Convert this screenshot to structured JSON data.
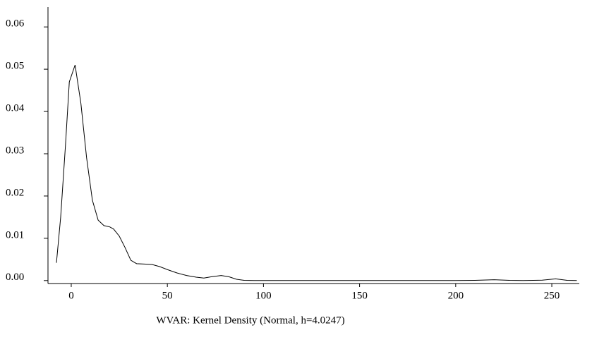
{
  "chart_data": {
    "type": "line",
    "caption": "WVAR: Kernel Density (Normal, h=4.0247)",
    "x": [
      -7.7,
      -5.5,
      -3,
      -1,
      2,
      5,
      8,
      11,
      14,
      17,
      20,
      22,
      25,
      28,
      31,
      34,
      38,
      42,
      46,
      50,
      55,
      60,
      65,
      69,
      73,
      78,
      82,
      86,
      90,
      95,
      100,
      150,
      200,
      210,
      220,
      228,
      235,
      245,
      252,
      258,
      263
    ],
    "series": [
      {
        "color": "#000000",
        "values": [
          0.0042,
          0.015,
          0.032,
          0.047,
          0.051,
          0.042,
          0.029,
          0.019,
          0.0143,
          0.013,
          0.0127,
          0.0122,
          0.0105,
          0.0078,
          0.0048,
          0.004,
          0.0039,
          0.0038,
          0.0033,
          0.0026,
          0.0018,
          0.0012,
          0.0008,
          0.0006,
          0.0009,
          0.0012,
          0.0009,
          0.0003,
          5e-05,
          0,
          0,
          0,
          0,
          5e-05,
          0.0002,
          5e-05,
          0,
          0.0001,
          0.0004,
          5e-05,
          0
        ]
      }
    ],
    "xlim": [
      -12.1,
      264.3
    ],
    "xticks": [
      0,
      50,
      100,
      150,
      200,
      250
    ],
    "ylim": [
      -0.0007,
      0.0647
    ],
    "yticks": [
      {
        "value": 0,
        "label": "0.00"
      },
      0.01,
      0.02,
      0.03,
      0.04,
      0.05,
      0.06
    ]
  }
}
